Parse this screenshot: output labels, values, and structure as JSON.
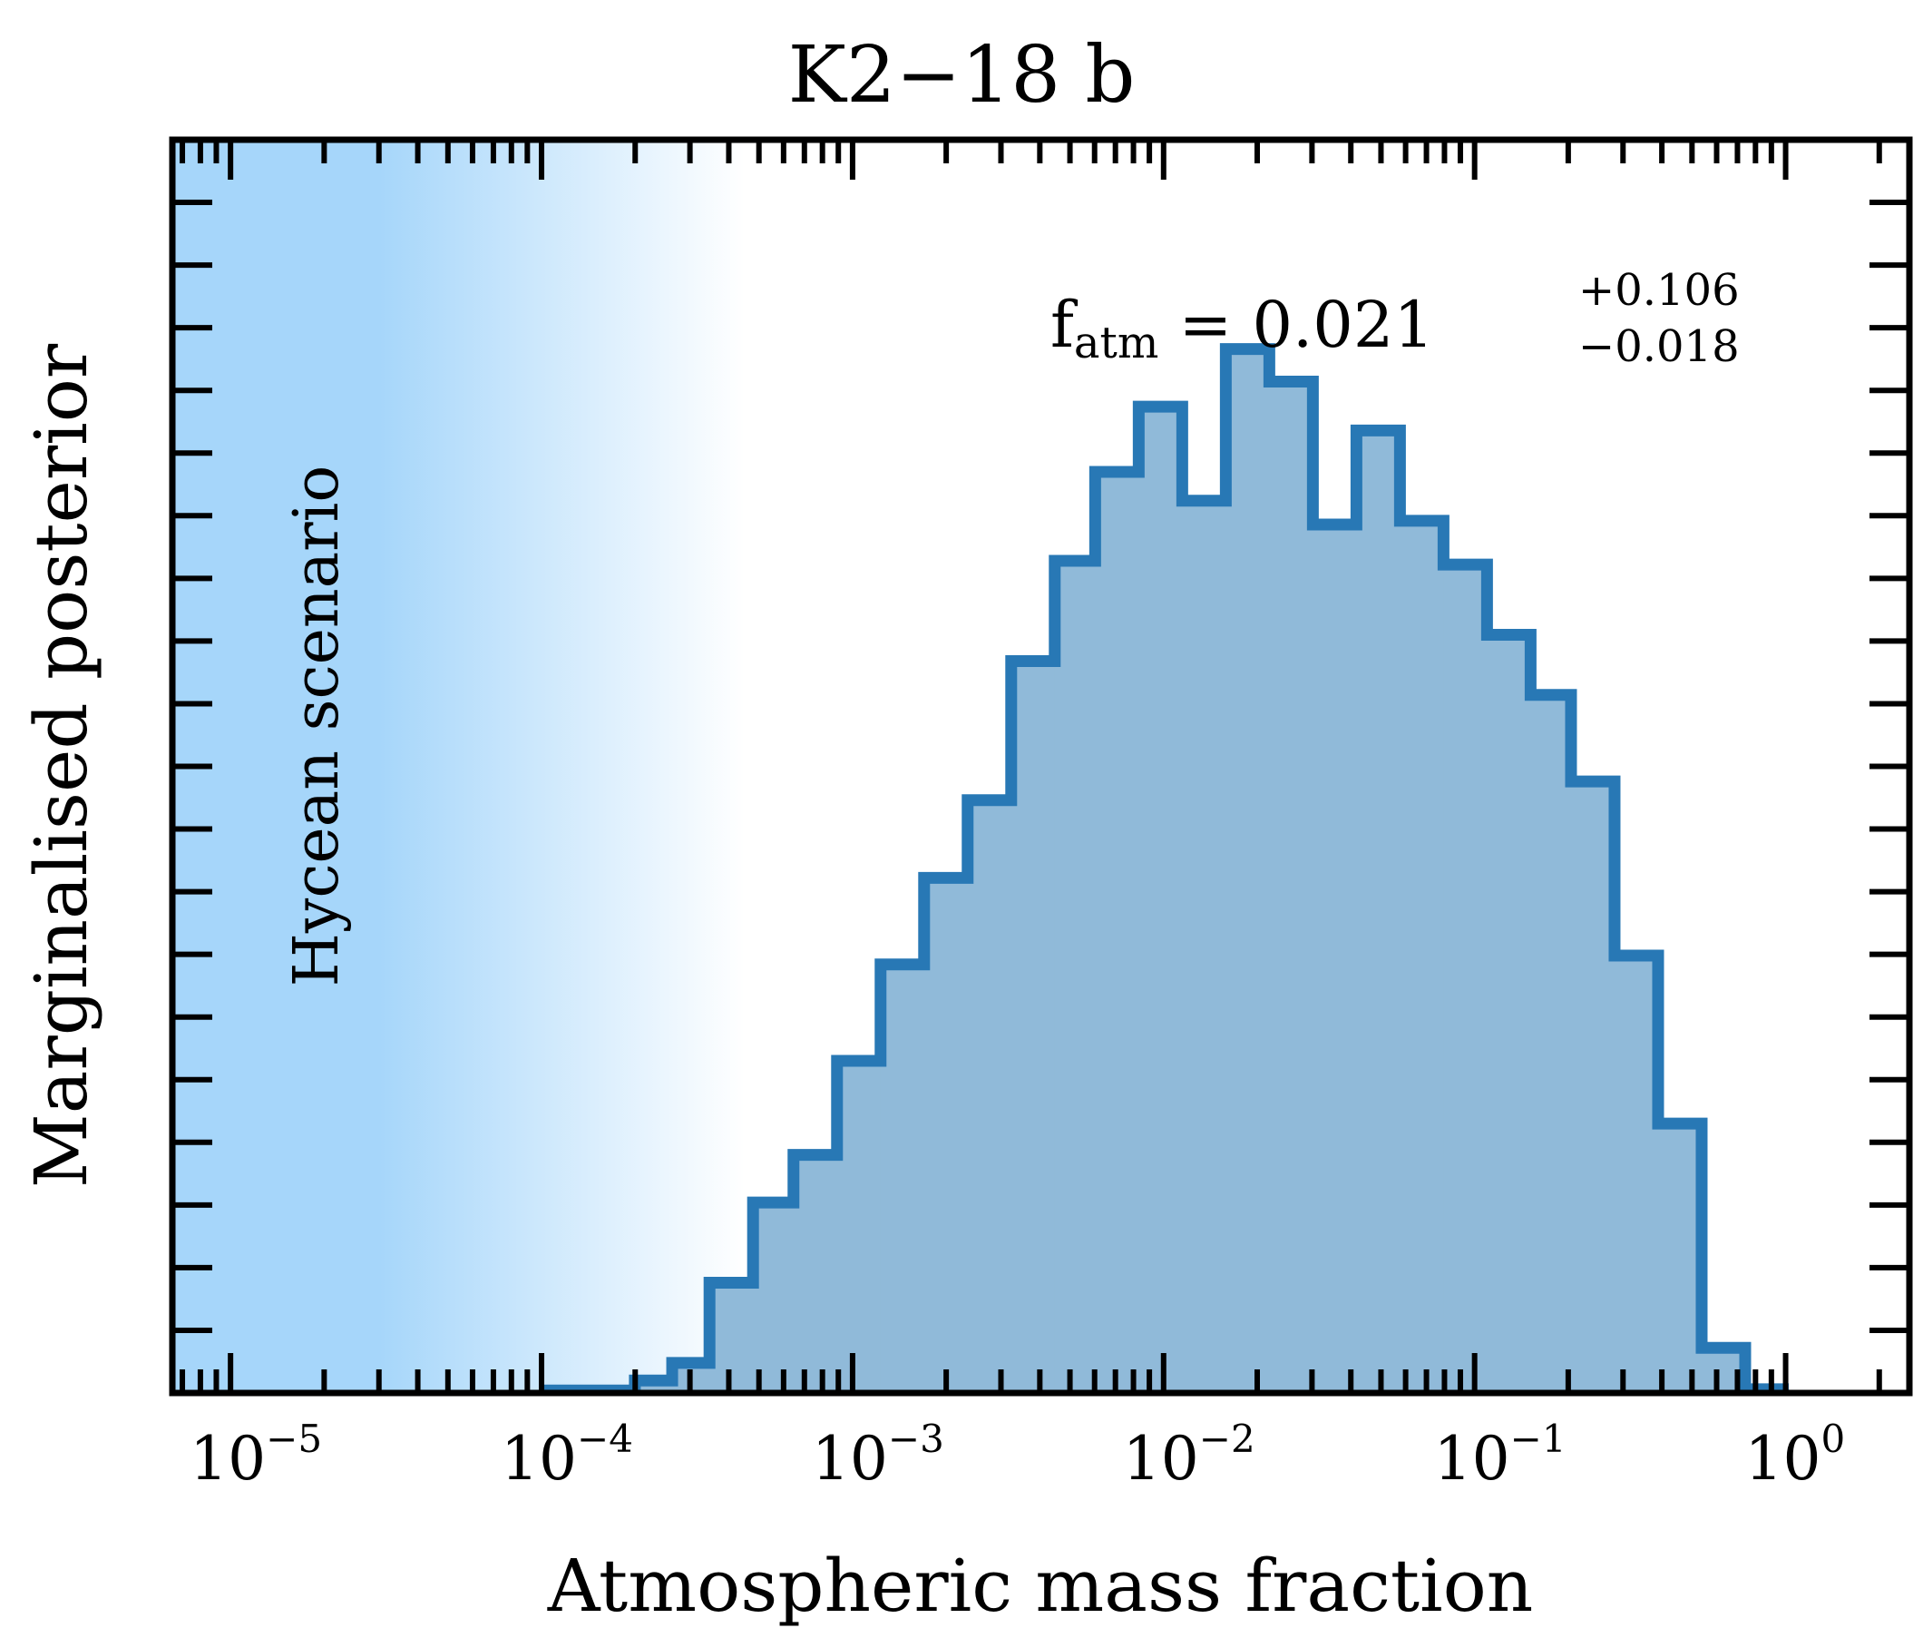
{
  "chart_data": {
    "type": "histogram",
    "title": "K2−18 b",
    "xlabel": "Atmospheric mass fraction",
    "ylabel": "Marginalised posterior",
    "xscale": "log",
    "xlim": [
      6.5e-06,
      2.5
    ],
    "ylim": [
      0,
      1.0
    ],
    "x_tick_labels": [
      {
        "value": 1e-05,
        "base": "10",
        "exp": "−5"
      },
      {
        "value": 0.0001,
        "base": "10",
        "exp": "−4"
      },
      {
        "value": 0.001,
        "base": "10",
        "exp": "−3"
      },
      {
        "value": 0.01,
        "base": "10",
        "exp": "−2"
      },
      {
        "value": 0.1,
        "base": "10",
        "exp": "−1"
      },
      {
        "value": 1,
        "base": "10",
        "exp": "0"
      }
    ],
    "y_tick_count": 20,
    "y_tick_labels_shown": false,
    "shaded_region": {
      "label": "Hycean scenario",
      "x_start": 6.5e-06,
      "x_end": 0.00045,
      "fade_start": 3e-05,
      "color": "#a6d6fa"
    },
    "annotation": {
      "symbol": "f",
      "subscript": "atm",
      "equals": " = ",
      "value": "0.021",
      "plus": "+0.106",
      "minus": "−0.018"
    },
    "series": [
      {
        "name": "posterior",
        "edge_color": "#2878b5",
        "fill_color": "#90bad9",
        "bin_edges_log10": [
          -4.0,
          -3.7,
          -3.58,
          -3.46,
          -3.32,
          -3.19,
          -3.05,
          -2.91,
          -2.77,
          -2.63,
          -2.49,
          -2.35,
          -2.22,
          -2.08,
          -1.94,
          -1.8,
          -1.66,
          -1.52,
          -1.38,
          -1.24,
          -1.1,
          -0.96,
          -0.82,
          -0.69,
          -0.55,
          -0.41,
          -0.27,
          -0.13,
          0.01
        ],
        "values": [
          0.002,
          0.01,
          0.024,
          0.088,
          0.152,
          0.19,
          0.265,
          0.342,
          0.411,
          0.473,
          0.584,
          0.664,
          0.735,
          0.787,
          0.712,
          0.833,
          0.807,
          0.693,
          0.768,
          0.696,
          0.661,
          0.605,
          0.557,
          0.488,
          0.349,
          0.215,
          0.036,
          0.003
        ]
      }
    ]
  }
}
